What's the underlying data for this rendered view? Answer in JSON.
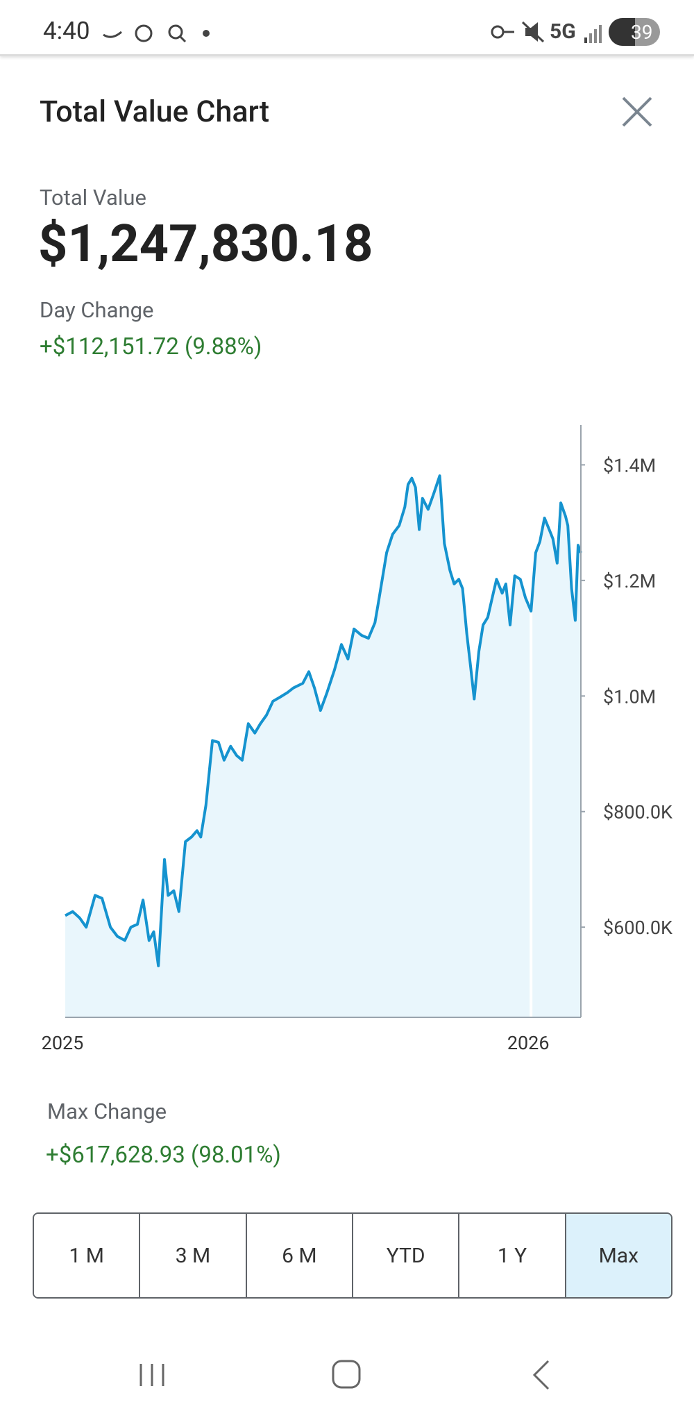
{
  "status_bar": {
    "time": "4:40",
    "network": "5G",
    "battery": "39"
  },
  "header": {
    "title": "Total Value Chart"
  },
  "summary": {
    "total_label": "Total Value",
    "total_value": "$1,247,830.18",
    "day_change_label": "Day Change",
    "day_change_value": "+$112,151.72 (9.88%)"
  },
  "chart_data": {
    "type": "line",
    "area": true,
    "color": "#1593cf",
    "area_color": "#e9f6fc",
    "x": [
      2025.0,
      2025.016,
      2025.031,
      2025.045,
      2025.064,
      2025.079,
      2025.097,
      2025.112,
      2025.128,
      2025.141,
      2025.155,
      2025.167,
      2025.18,
      2025.19,
      2025.2,
      2025.213,
      2025.221,
      2025.233,
      2025.244,
      2025.258,
      2025.271,
      2025.283,
      2025.291,
      2025.302,
      2025.316,
      2025.329,
      2025.341,
      2025.355,
      2025.368,
      2025.38,
      2025.393,
      2025.407,
      2025.419,
      2025.432,
      2025.446,
      2025.461,
      2025.477,
      2025.49,
      2025.51,
      2025.523,
      2025.535,
      2025.548,
      2025.562,
      2025.578,
      2025.593,
      2025.607,
      2025.62,
      2025.636,
      2025.651,
      2025.665,
      2025.674,
      2025.69,
      2025.703,
      2025.717,
      2025.729,
      2025.736,
      2025.744,
      2025.752,
      2025.76,
      2025.767,
      2025.779,
      2025.791,
      2025.804,
      2025.814,
      2025.826,
      2025.835,
      2025.845,
      2025.853,
      2025.862,
      2025.87,
      2025.878,
      2025.888,
      2025.897,
      2025.907,
      2025.919,
      2025.926,
      2025.938,
      2025.946,
      2025.955,
      2025.965,
      2025.977,
      2025.988,
      2026.0,
      2026.01,
      2026.019,
      2026.029,
      2026.039,
      2026.047,
      2026.056,
      2026.064,
      2026.074,
      2026.079,
      2026.087,
      2026.095,
      2026.101,
      2026.107
    ],
    "values": [
      620000,
      627000,
      616000,
      600000,
      655000,
      650000,
      600000,
      584000,
      577000,
      600000,
      605000,
      647000,
      577000,
      592000,
      533000,
      717000,
      655000,
      663000,
      627000,
      748000,
      756000,
      767000,
      756000,
      811000,
      923000,
      920000,
      889000,
      913000,
      897000,
      889000,
      952000,
      936000,
      952000,
      967000,
      991000,
      998000,
      1006000,
      1014000,
      1022000,
      1042000,
      1014000,
      975000,
      1006000,
      1045000,
      1089000,
      1064000,
      1116000,
      1105000,
      1100000,
      1127000,
      1170000,
      1248000,
      1280000,
      1295000,
      1327000,
      1366000,
      1377000,
      1361000,
      1288000,
      1342000,
      1323000,
      1350000,
      1381000,
      1264000,
      1217000,
      1194000,
      1202000,
      1186000,
      1108000,
      1053000,
      995000,
      1077000,
      1123000,
      1136000,
      1178000,
      1202000,
      1178000,
      1194000,
      1123000,
      1208000,
      1202000,
      1170000,
      1147000,
      1248000,
      1267000,
      1308000,
      1288000,
      1272000,
      1230000,
      1334000,
      1311000,
      1295000,
      1186000,
      1131000,
      1261000,
      1247830.18
    ],
    "xlim": [
      2025,
      2026.107
    ],
    "xticks": [
      {
        "value": 2025,
        "label": "2025"
      },
      {
        "value": 2026,
        "label": "2026"
      }
    ],
    "ylim": [
      444000,
      1469000
    ],
    "yticks": [
      {
        "value": 600000,
        "label": "$600.0K"
      },
      {
        "value": 800000,
        "label": "$800.0K"
      },
      {
        "value": 1000000,
        "label": "$1.0M"
      },
      {
        "value": 1200000,
        "label": "$1.2M"
      },
      {
        "value": 1400000,
        "label": "$1.4M"
      }
    ]
  },
  "footer": {
    "max_change_label": "Max Change",
    "max_change_value": "+$617,628.93 (98.01%)"
  },
  "ranges": {
    "buttons": [
      "1 M",
      "3 M",
      "6 M",
      "YTD",
      "1 Y",
      "Max"
    ],
    "selected": 5
  }
}
